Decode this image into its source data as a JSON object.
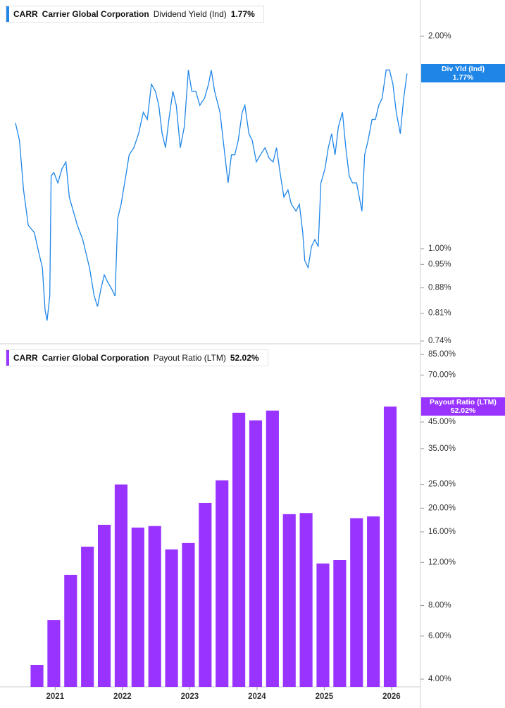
{
  "chart_data": [
    {
      "type": "line",
      "ticker": "CARR",
      "company": "Carrier Global Corporation",
      "metric": "Dividend Yield (Ind)",
      "current_label": "1.77%",
      "badge_label": "Div Yld (Ind)",
      "color": "#1f86e8",
      "log_scale": true,
      "xlim": [
        2020.18,
        2026.43
      ],
      "ylim": [
        0.735,
        2.25
      ],
      "yticks": [
        {
          "value": 2.0,
          "label": "2.00%"
        },
        {
          "value": 1.0,
          "label": "1.00%"
        },
        {
          "value": 0.95,
          "label": "0.95%"
        },
        {
          "value": 0.88,
          "label": "0.88%"
        },
        {
          "value": 0.81,
          "label": "0.81%"
        },
        {
          "value": 0.74,
          "label": "0.74%"
        }
      ],
      "x": [
        2020.41,
        2020.47,
        2020.53,
        2020.6,
        2020.69,
        2020.76,
        2020.81,
        2020.85,
        2020.88,
        2020.92,
        2020.94,
        2020.98,
        2021.04,
        2021.1,
        2021.16,
        2021.21,
        2021.27,
        2021.33,
        2021.41,
        2021.46,
        2021.51,
        2021.58,
        2021.63,
        2021.68,
        2021.73,
        2021.78,
        2021.84,
        2021.89,
        2021.93,
        2021.98,
        2022.05,
        2022.1,
        2022.17,
        2022.24,
        2022.31,
        2022.37,
        2022.43,
        2022.49,
        2022.54,
        2022.59,
        2022.64,
        2022.69,
        2022.75,
        2022.8,
        2022.86,
        2022.92,
        2022.98,
        2023.03,
        2023.09,
        2023.15,
        2023.22,
        2023.28,
        2023.32,
        2023.37,
        2023.45,
        2023.51,
        2023.57,
        2023.62,
        2023.67,
        2023.72,
        2023.78,
        2023.82,
        2023.88,
        2023.93,
        2023.99,
        2024.05,
        2024.12,
        2024.18,
        2024.24,
        2024.29,
        2024.35,
        2024.4,
        2024.46,
        2024.51,
        2024.58,
        2024.63,
        2024.68,
        2024.71,
        2024.76,
        2024.81,
        2024.86,
        2024.91,
        2024.95,
        2025.01,
        2025.06,
        2025.11,
        2025.16,
        2025.21,
        2025.27,
        2025.32,
        2025.37,
        2025.42,
        2025.48,
        2025.52,
        2025.56,
        2025.6,
        2025.65,
        2025.71,
        2025.76,
        2025.81,
        2025.86,
        2025.92,
        2025.97,
        2026.02,
        2026.07,
        2026.13,
        2026.18,
        2026.23
      ],
      "values": [
        1.507,
        1.422,
        1.211,
        1.079,
        1.054,
        0.984,
        0.94,
        0.818,
        0.791,
        0.857,
        1.268,
        1.282,
        1.239,
        1.297,
        1.327,
        1.183,
        1.13,
        1.079,
        1.03,
        0.984,
        0.94,
        0.857,
        0.828,
        0.877,
        0.918,
        0.897,
        0.877,
        0.857,
        1.104,
        1.156,
        1.268,
        1.358,
        1.39,
        1.455,
        1.56,
        1.524,
        1.71,
        1.671,
        1.596,
        1.455,
        1.39,
        1.524,
        1.671,
        1.596,
        1.39,
        1.489,
        1.791,
        1.671,
        1.671,
        1.596,
        1.633,
        1.71,
        1.791,
        1.671,
        1.56,
        1.39,
        1.239,
        1.358,
        1.358,
        1.422,
        1.56,
        1.596,
        1.455,
        1.422,
        1.327,
        1.358,
        1.39,
        1.343,
        1.327,
        1.39,
        1.268,
        1.183,
        1.211,
        1.156,
        1.13,
        1.156,
        1.054,
        0.962,
        0.94,
        1.007,
        1.03,
        1.007,
        1.239,
        1.297,
        1.39,
        1.455,
        1.358,
        1.489,
        1.56,
        1.39,
        1.268,
        1.239,
        1.239,
        1.183,
        1.13,
        1.358,
        1.422,
        1.524,
        1.524,
        1.596,
        1.633,
        1.791,
        1.791,
        1.71,
        1.56,
        1.455,
        1.633,
        1.77
      ]
    },
    {
      "type": "bar",
      "ticker": "CARR",
      "company": "Carrier Global Corporation",
      "metric": "Payout Ratio (LTM)",
      "current_label": "52.02%",
      "badge_label": "Payout Ratio (LTM)",
      "color": "#9933ff",
      "log_scale": true,
      "xlim": [
        2020.18,
        2026.43
      ],
      "ylim": [
        3.72,
        92.7
      ],
      "xticks": [
        2021,
        2022,
        2023,
        2024,
        2025,
        2026
      ],
      "yticks": [
        {
          "value": 85,
          "label": "85.00%"
        },
        {
          "value": 70,
          "label": "70.00%"
        },
        {
          "value": 45,
          "label": "45.00%"
        },
        {
          "value": 35,
          "label": "35.00%"
        },
        {
          "value": 25,
          "label": "25.00%"
        },
        {
          "value": 20,
          "label": "20.00%"
        },
        {
          "value": 16,
          "label": "16.00%"
        },
        {
          "value": 12,
          "label": "12.00%"
        },
        {
          "value": 8,
          "label": "8.00%"
        },
        {
          "value": 6,
          "label": "6.00%"
        },
        {
          "value": 4,
          "label": "4.00%"
        }
      ],
      "x": [
        2020.73,
        2020.98,
        2021.23,
        2021.48,
        2021.73,
        2021.98,
        2022.23,
        2022.48,
        2022.73,
        2022.98,
        2023.23,
        2023.48,
        2023.73,
        2023.98,
        2024.23,
        2024.48,
        2024.73,
        2024.98,
        2025.23,
        2025.48,
        2025.73,
        2025.98
      ],
      "values": [
        4.57,
        6.98,
        10.68,
        13.92,
        17.1,
        25.0,
        16.66,
        16.9,
        13.56,
        14.4,
        21.0,
        25.98,
        49.1,
        45.7,
        50.1,
        18.9,
        19.1,
        11.88,
        12.27,
        18.2,
        18.5,
        52.02
      ]
    }
  ]
}
